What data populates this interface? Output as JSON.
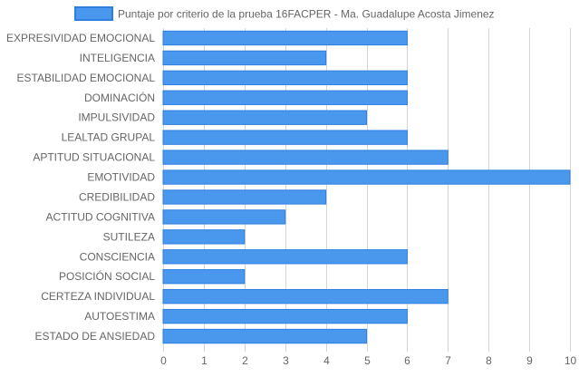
{
  "chart_data": {
    "type": "bar",
    "orientation": "horizontal",
    "title": "",
    "xlabel": "",
    "ylabel": "",
    "categories": [
      "EXPRESIVIDAD EMOCIONAL",
      "INTELIGENCIA",
      "ESTABILIDAD EMOCIONAL",
      "DOMINACIÓN",
      "IMPULSIVIDAD",
      "LEALTAD GRUPAL",
      "APTITUD SITUACIONAL",
      "EMOTIVIDAD",
      "CREDIBILIDAD",
      "ACTITUD COGNITIVA",
      "SUTILEZA",
      "CONSCIENCIA",
      "POSICIÓN SOCIAL",
      "CERTEZA INDIVIDUAL",
      "AUTOESTIMA",
      "ESTADO DE ANSIEDAD"
    ],
    "series": [
      {
        "name": "Puntaje por criterio de la prueba 16FACPER - Ma. Guadalupe Acosta Jimenez",
        "values": [
          6,
          4,
          6,
          6,
          5,
          6,
          7,
          10,
          4,
          3,
          2,
          6,
          2,
          7,
          6,
          5
        ],
        "fill_color": "#4a98ee",
        "border_color": "#2f7fe0"
      }
    ],
    "xlim": [
      0,
      10
    ],
    "xticks": [
      "0",
      "1",
      "2",
      "3",
      "4",
      "5",
      "6",
      "7",
      "8",
      "9",
      "10"
    ],
    "grid": true,
    "legend_position": "top"
  }
}
